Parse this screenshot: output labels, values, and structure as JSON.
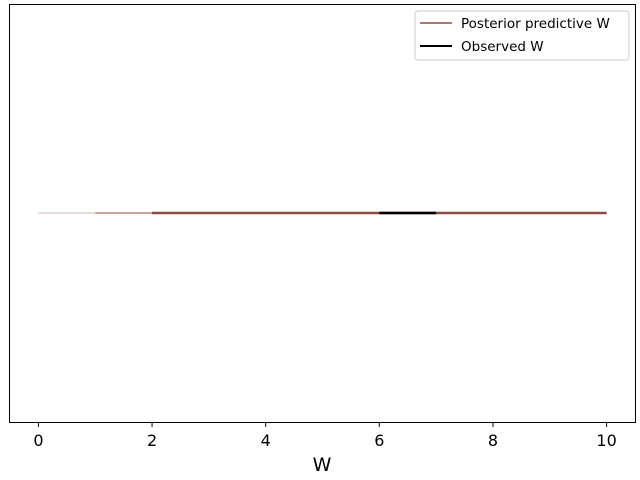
{
  "chart_data": {
    "type": "line",
    "xlabel": "W",
    "xlim": [
      -0.5,
      10.5
    ],
    "x_ticks": [
      0,
      2,
      4,
      6,
      8,
      10
    ],
    "x_tick_labels": [
      "0",
      "2",
      "4",
      "6",
      "8",
      "10"
    ],
    "y_ticks_shown": false,
    "grid": false,
    "legend_position": "top-right",
    "series": [
      {
        "name": "Posterior predictive W",
        "color": "#8c4b45",
        "kind": "hdi-bands",
        "bands": [
          {
            "x": [
              0,
              10
            ],
            "weight": 0.4
          },
          {
            "x": [
              1,
              10
            ],
            "weight": 1.0
          },
          {
            "x": [
              2,
              10
            ],
            "weight": 2.5
          }
        ]
      },
      {
        "name": "Observed W",
        "color": "#000000",
        "kind": "segment",
        "x": [
          6,
          7
        ],
        "weight": 2.5
      }
    ]
  }
}
